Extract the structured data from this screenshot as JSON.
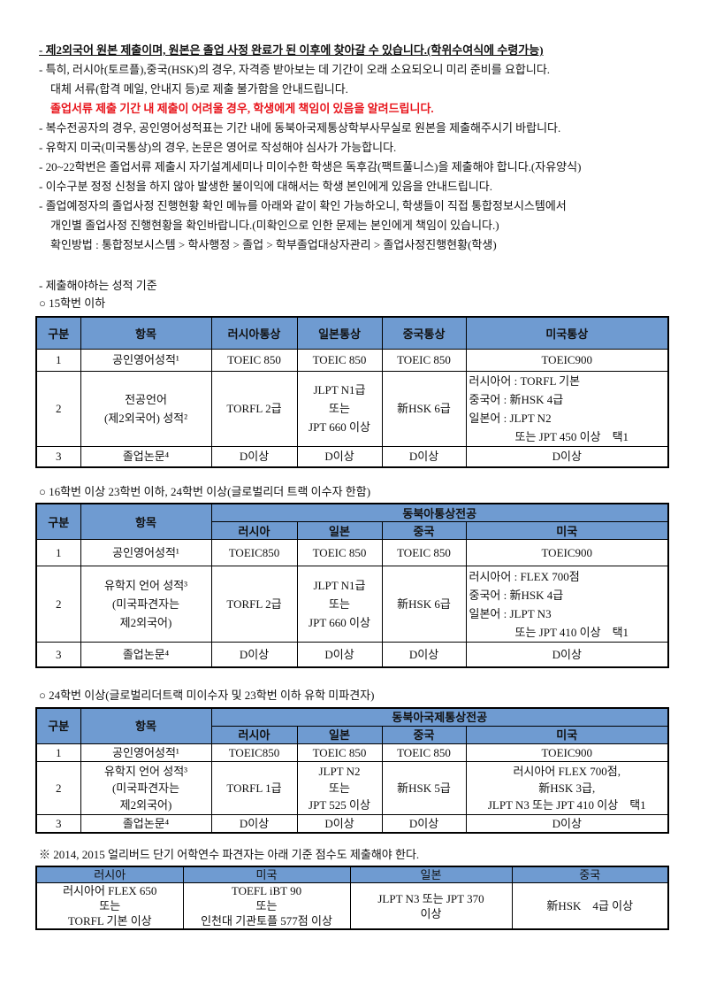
{
  "notes": [
    {
      "text": "- 제2외국어 원본 제출이며, 원본은 졸업 사정 완료가 된 이후에 찾아갈 수 있습니다.(학위수여식에 수령가능)",
      "style": "u"
    },
    {
      "text": "- 특히, 러시아(토르플),중국(HSK)의 경우, 자격증 받아보는 데 기간이 오래 소요되오니 미리 준비를 요합니다.",
      "style": ""
    },
    {
      "text": "대체 서류(합격 메일, 안내지 등)로 제출 불가함을 안내드립니다.",
      "style": "ind"
    },
    {
      "text": "졸업서류 제출 기간 내 제출이 어려울 경우, 학생에게 책임이 있음을 알려드립니다.",
      "style": "ind red"
    },
    {
      "text": "- 복수전공자의 경우, 공인영어성적표는 기간 내에 동북아국제통상학부사무실로 원본을 제출해주시기 바랍니다.",
      "style": ""
    },
    {
      "text": "- 유학지 미국(미국통상)의 경우, 논문은 영어로 작성해야 심사가 가능합니다.",
      "style": ""
    },
    {
      "text": "- 20~22학번은 졸업서류 제출시 자기설계세미나 미이수한 학생은 독후감(팩트풀니스)을 제출해야 합니다.(자유양식)",
      "style": ""
    },
    {
      "text": "- 이수구분 정정 신청을 하지 않아 발생한 불이익에 대해서는 학생 본인에게 있음을 안내드립니다.",
      "style": ""
    },
    {
      "text": "- 졸업예정자의 졸업사정 진행현황 확인 메뉴를 아래와 같이 확인 가능하오니, 학생들이 직접 통합정보시스템에서",
      "style": ""
    },
    {
      "text": "개인별 졸업사정 진행현황을 확인바랍니다.(미확인으로 인한 문제는 본인에게 책임이 있습니다.)",
      "style": "ind"
    },
    {
      "text": "확인방법 : 통합정보시스템 > 학사행정 > 졸업 > 학부졸업대상자관리 > 졸업사정진행현황(학생)",
      "style": "ind"
    }
  ],
  "section_title": "- 제출해야하는 성적 기준",
  "header_color": "#6f9bd1",
  "table1": {
    "caption": "○ 15학번 이하",
    "headers": [
      "구분",
      "항목",
      "러시아통상",
      "일본통상",
      "중국통상",
      "미국통상"
    ],
    "rows": [
      [
        "1",
        "공인영어성적¹",
        "TOEIC 850",
        "TOEIC 850",
        "TOEIC 850",
        "TOEIC900"
      ],
      [
        "2",
        "전공언어\n(제2외국어) 성적²",
        "TORFL 2급",
        "JLPT N1급\n또는\nJPT 660 이상",
        "新HSK 6급",
        "러시아어 : TORFL 기본\n중국어 : 新HSK 4급\n일본어 : JLPT N2\n　　　　또는 JPT 450 이상　택1"
      ],
      [
        "3",
        "졸업논문⁴",
        "D이상",
        "D이상",
        "D이상",
        "D이상"
      ]
    ]
  },
  "table2": {
    "caption": "○ 16학번 이상 23학번 이하, 24학번 이상(글로벌리더 트랙 이수자 한함)",
    "group": "동북아통상전공",
    "headers": [
      "구분",
      "항목",
      "러시아",
      "일본",
      "중국",
      "미국"
    ],
    "rows": [
      [
        "1",
        "공인영어성적¹",
        "TOEIC850",
        "TOEIC 850",
        "TOEIC 850",
        "TOEIC900"
      ],
      [
        "2",
        "유학지 언어 성적³\n(미국파견자는\n제2외국어)",
        "TORFL 2급",
        "JLPT N1급\n또는\nJPT 660 이상",
        "新HSK 6급",
        "러시아어 : FLEX 700점\n중국어 : 新HSK 4급\n일본어 : JLPT N3\n　　　　또는 JPT 410 이상　택1"
      ],
      [
        "3",
        "졸업논문⁴",
        "D이상",
        "D이상",
        "D이상",
        "D이상"
      ]
    ]
  },
  "table3": {
    "caption": "○ 24학번 이상(글로벌리더트랙 미이수자 및 23학번 이하 유학 미파견자)",
    "group": "동북아국제통상전공",
    "headers": [
      "구분",
      "항목",
      "러시아",
      "일본",
      "중국",
      "미국"
    ],
    "rows": [
      [
        "1",
        "공인영어성적¹",
        "TOEIC850",
        "TOEIC 850",
        "TOEIC 850",
        "TOEIC900"
      ],
      [
        "2",
        "유학지 언어 성적³\n(미국파견자는\n제2외국어)",
        "TORFL 1급",
        "JLPT N2\n또는\nJPT 525 이상",
        "新HSK 5급",
        "러시아어 FLEX 700점,\n新HSK 3급,\nJLPT N3 또는 JPT 410 이상　택1"
      ],
      [
        "3",
        "졸업논문⁴",
        "D이상",
        "D이상",
        "D이상",
        "D이상"
      ]
    ]
  },
  "table4": {
    "caption": "※ 2014, 2015 얼리버드 단기 어학연수 파견자는 아래 기준 점수도 제출해야 한다.",
    "headers": [
      "러시아",
      "미국",
      "일본",
      "중국"
    ],
    "row": [
      "러시아어 FLEX 650\n또는\nTORFL 기본 이상",
      "TOEFL iBT 90\n또는\n인천대 기관토플 577점 이상",
      "JLPT N3 또는 JPT 370\n이상",
      "新HSK　4급 이상"
    ]
  }
}
